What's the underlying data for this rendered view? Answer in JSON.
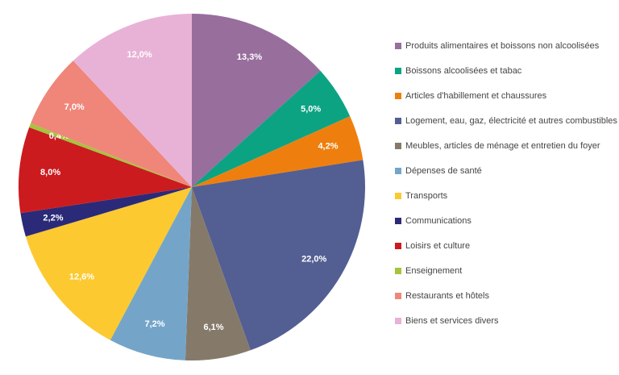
{
  "chart_data": {
    "type": "pie",
    "categories": [
      "Produits alimentaires et boissons non alcoolisées",
      "Boissons alcoolisées et tabac",
      "Articles d'habillement et chaussures",
      "Logement, eau, gaz, électricité et autres combustibles",
      "Meubles, articles de ménage et entretien du foyer",
      "Dépenses de santé",
      "Transports",
      "Communications",
      "Loisirs et culture",
      "Enseignement",
      "Restaurants et hôtels",
      "Biens et services divers"
    ],
    "values": [
      13.3,
      5.0,
      4.2,
      22.0,
      6.1,
      7.2,
      12.6,
      2.2,
      8.0,
      0.4,
      7.0,
      12.0
    ],
    "value_labels": [
      "13,3%",
      "5,0%",
      "4,2%",
      "22,0%",
      "6,1%",
      "7,2%",
      "12,6%",
      "2,2%",
      "8,0%",
      "0,4%",
      "7,0%",
      "12,0%"
    ],
    "colors": [
      "#986e9d",
      "#0ca383",
      "#ee7f0e",
      "#535e93",
      "#857a6a",
      "#74a5c9",
      "#fcc930",
      "#2b2a78",
      "#cb1b1f",
      "#a5c43c",
      "#ef8679",
      "#e8b2d6"
    ],
    "legend": "right"
  }
}
